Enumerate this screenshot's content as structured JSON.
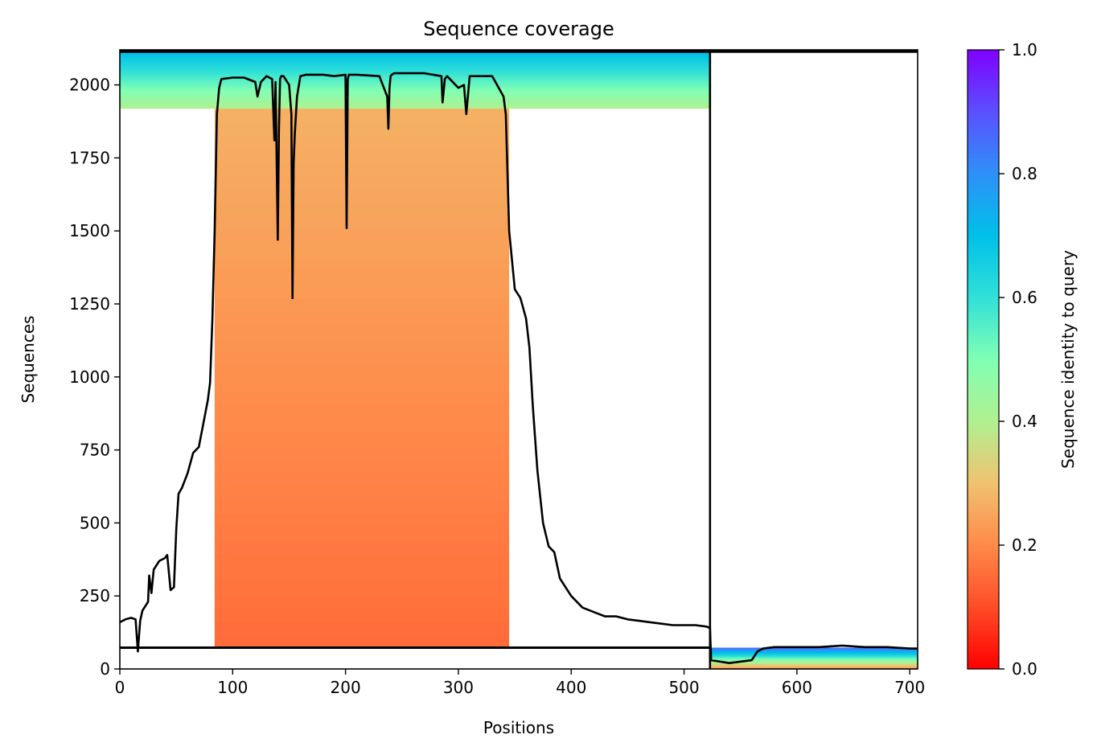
{
  "chart_data": {
    "type": "heatmap",
    "title": "Sequence coverage",
    "xlabel": "Positions",
    "ylabel": "Sequences",
    "colorbar_label": "Sequence identity to query",
    "xlim": [
      0,
      707
    ],
    "ylim": [
      0,
      2120
    ],
    "x_ticks": [
      0,
      100,
      200,
      300,
      400,
      500,
      600,
      700
    ],
    "y_ticks": [
      0,
      250,
      500,
      750,
      1000,
      1250,
      1500,
      1750,
      2000
    ],
    "colorbar_ticks": [
      "0.0",
      "0.2",
      "0.4",
      "0.6",
      "0.8",
      "1.0"
    ],
    "colorbar_range": [
      0,
      1
    ],
    "colormap": "rainbow_r",
    "segment_boundary_x": 523,
    "horizontal_line_y": 73,
    "grid": false,
    "blocks": [
      {
        "name": "segment-1",
        "x0": 84,
        "x1": 345,
        "y0": 73,
        "y1": 1920,
        "identity_bottom": 0.15,
        "identity_top": 0.27
      },
      {
        "name": "segment-1-top",
        "x0": 0,
        "x1": 523,
        "y0": 1920,
        "y1": 2110,
        "identity_bottom": 0.4,
        "identity_top": 0.7
      },
      {
        "name": "segment-2",
        "x0": 523,
        "x1": 707,
        "y0": 0,
        "y1": 73,
        "identity_bottom": 0.2,
        "identity_top": 0.85
      }
    ],
    "coverage_line": {
      "x": [
        0,
        5,
        10,
        14,
        16,
        18,
        20,
        25,
        26,
        28,
        30,
        35,
        40,
        42,
        45,
        48,
        50,
        52,
        55,
        60,
        65,
        70,
        75,
        78,
        80,
        82,
        84,
        86,
        88,
        90,
        100,
        110,
        120,
        122,
        125,
        130,
        135,
        137,
        138,
        140,
        141,
        142,
        143,
        145,
        150,
        152,
        153,
        154,
        155,
        157,
        160,
        165,
        170,
        180,
        190,
        200,
        201,
        202,
        203,
        205,
        210,
        230,
        237,
        238,
        239,
        240,
        241,
        243,
        250,
        270,
        285,
        286,
        288,
        290,
        300,
        305,
        307,
        310,
        330,
        340,
        342,
        345,
        350,
        355,
        360,
        363,
        366,
        370,
        375,
        380,
        385,
        390,
        400,
        410,
        420,
        430,
        440,
        450,
        460,
        470,
        480,
        490,
        500,
        510,
        520,
        523,
        524,
        540,
        560,
        565,
        570,
        580,
        600,
        620,
        640,
        660,
        680,
        700,
        707
      ],
      "y": [
        160,
        170,
        175,
        170,
        60,
        165,
        200,
        230,
        320,
        260,
        340,
        370,
        380,
        390,
        270,
        280,
        480,
        600,
        620,
        670,
        740,
        760,
        860,
        920,
        980,
        1200,
        1500,
        1900,
        1990,
        2020,
        2025,
        2025,
        2010,
        1960,
        2010,
        2030,
        2020,
        1810,
        2010,
        1470,
        1840,
        2020,
        2030,
        2030,
        2000,
        1900,
        1270,
        1730,
        1830,
        1960,
        2030,
        2035,
        2035,
        2035,
        2030,
        2035,
        1510,
        2020,
        2035,
        2035,
        2035,
        2030,
        1960,
        1850,
        1990,
        2030,
        2035,
        2040,
        2040,
        2040,
        2030,
        1940,
        2020,
        2030,
        1990,
        2000,
        1900,
        2030,
        2030,
        1960,
        1900,
        1500,
        1300,
        1270,
        1200,
        1100,
        900,
        680,
        500,
        420,
        400,
        310,
        250,
        210,
        195,
        180,
        180,
        170,
        165,
        160,
        155,
        150,
        150,
        150,
        145,
        140,
        30,
        20,
        30,
        60,
        70,
        75,
        75,
        75,
        80,
        75,
        75,
        70,
        70
      ]
    }
  }
}
